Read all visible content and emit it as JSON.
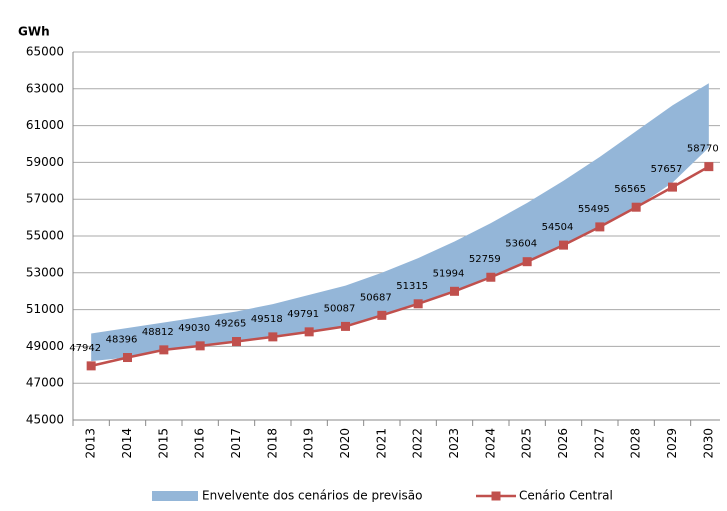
{
  "chart_data": {
    "type": "line",
    "y_label": "GWh",
    "categories": [
      "2013",
      "2014",
      "2015",
      "2016",
      "2017",
      "2018",
      "2019",
      "2020",
      "2021",
      "2022",
      "2023",
      "2024",
      "2025",
      "2026",
      "2027",
      "2028",
      "2029",
      "2030"
    ],
    "envelope": {
      "name": "Envelvente dos cenários de previsão",
      "color": "#94b6d8",
      "upper": [
        49700,
        50000,
        50300,
        50600,
        50900,
        51300,
        51800,
        52300,
        53000,
        53800,
        54700,
        55700,
        56800,
        58000,
        59300,
        60700,
        62100,
        63300
      ],
      "lower": [
        48200,
        48400,
        48812,
        49030,
        49265,
        49518,
        49791,
        50087,
        50687,
        51315,
        51994,
        52759,
        53604,
        54504,
        55495,
        56565,
        57900,
        59800
      ]
    },
    "series": [
      {
        "name": "Cenário Central",
        "color": "#c0504d",
        "values": [
          47942,
          48396,
          48812,
          49030,
          49265,
          49518,
          49791,
          50087,
          50687,
          51315,
          51994,
          52759,
          53604,
          54504,
          55495,
          56565,
          57657,
          58770
        ]
      }
    ],
    "ylim": [
      45000,
      65000
    ],
    "yticks": [
      45000,
      47000,
      49000,
      51000,
      53000,
      55000,
      57000,
      59000,
      61000,
      63000,
      65000
    ],
    "grid": true,
    "legend": "bottom"
  }
}
